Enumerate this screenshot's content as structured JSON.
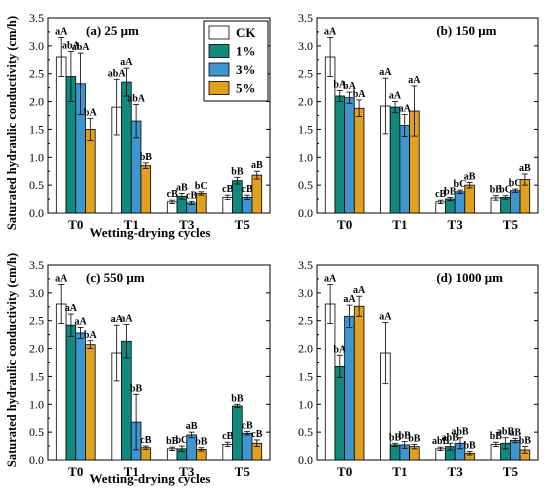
{
  "figure": {
    "y_axis_label": "Saturated hydraulic conductivity (cm/h)",
    "x_axis_label": "Wetting-drying cycles"
  },
  "colors": {
    "CK": "#ffffff",
    "1%": "#11897f",
    "3%": "#3e95cf",
    "5%": "#e1a01e"
  },
  "chart_data": [
    {
      "type": "bar",
      "title": "(a) 25 μm",
      "categories": [
        "T0",
        "T1",
        "T3",
        "T5"
      ],
      "ylim": [
        0,
        3.5
      ],
      "yticks": [
        "0.0",
        "0.5",
        "1.0",
        "1.5",
        "2.0",
        "2.5",
        "3.0",
        "3.5"
      ],
      "legend": {
        "placement": "top-right",
        "entries": [
          "CK",
          "1%",
          "3%",
          "5%"
        ]
      },
      "series": [
        {
          "name": "CK",
          "values": [
            2.8,
            1.9,
            0.2,
            0.28
          ],
          "errors": [
            0.35,
            0.5,
            0.03,
            0.04
          ],
          "labels": [
            "aA",
            "abA",
            "cB",
            "cB"
          ]
        },
        {
          "name": "1%",
          "values": [
            2.45,
            2.35,
            0.3,
            0.58
          ],
          "errors": [
            0.45,
            0.25,
            0.05,
            0.06
          ],
          "labels": [
            "abA",
            "aA",
            "aB",
            "bB"
          ]
        },
        {
          "name": "3%",
          "values": [
            2.32,
            1.65,
            0.18,
            0.28
          ],
          "errors": [
            0.55,
            0.3,
            0.03,
            0.04
          ],
          "labels": [
            "abA",
            "abA",
            "cB",
            "cB"
          ]
        },
        {
          "name": "5%",
          "values": [
            1.5,
            0.85,
            0.35,
            0.68
          ],
          "errors": [
            0.2,
            0.05,
            0.03,
            0.07
          ],
          "labels": [
            "bA",
            "bB",
            "bC",
            "aB"
          ]
        }
      ]
    },
    {
      "type": "bar",
      "title": "(b) 150 μm",
      "categories": [
        "T0",
        "T1",
        "T3",
        "T5"
      ],
      "ylim": [
        0,
        3.5
      ],
      "yticks": [
        "0.0",
        "0.5",
        "1.0",
        "1.5",
        "2.0",
        "2.5",
        "3.0",
        "3.5"
      ],
      "series": [
        {
          "name": "CK",
          "values": [
            2.8,
            1.92,
            0.2,
            0.27
          ],
          "errors": [
            0.35,
            0.5,
            0.03,
            0.04
          ],
          "labels": [
            "aA",
            "aA",
            "cB",
            "bB"
          ]
        },
        {
          "name": "1%",
          "values": [
            2.1,
            1.9,
            0.25,
            0.28
          ],
          "errors": [
            0.1,
            0.1,
            0.03,
            0.03
          ],
          "labels": [
            "bA",
            "aA",
            "bB",
            "bC"
          ]
        },
        {
          "name": "3%",
          "values": [
            2.07,
            1.57,
            0.38,
            0.4
          ],
          "errors": [
            0.1,
            0.2,
            0.03,
            0.03
          ],
          "labels": [
            "bA",
            "aA",
            "bC",
            "bC"
          ]
        },
        {
          "name": "5%",
          "values": [
            1.88,
            1.83,
            0.5,
            0.6
          ],
          "errors": [
            0.15,
            0.45,
            0.05,
            0.1
          ],
          "labels": [
            "bA",
            "aA",
            "aB",
            "aB"
          ]
        }
      ]
    },
    {
      "type": "bar",
      "title": "(c) 550 μm",
      "categories": [
        "T0",
        "T1",
        "T3",
        "T5"
      ],
      "ylim": [
        0,
        3.5
      ],
      "yticks": [
        "0.0",
        "0.5",
        "1.0",
        "1.5",
        "2.0",
        "2.5",
        "3.0",
        "3.5"
      ],
      "series": [
        {
          "name": "CK",
          "values": [
            2.8,
            1.92,
            0.2,
            0.28
          ],
          "errors": [
            0.35,
            0.5,
            0.03,
            0.04
          ],
          "labels": [
            "aA",
            "aA",
            "bB",
            "cB"
          ]
        },
        {
          "name": "1%",
          "values": [
            2.42,
            2.13,
            0.2,
            0.97
          ],
          "errors": [
            0.2,
            0.3,
            0.05,
            0.03
          ],
          "labels": [
            "aA",
            "aA",
            "bC",
            "bB"
          ]
        },
        {
          "name": "3%",
          "values": [
            2.28,
            0.68,
            0.45,
            0.48
          ],
          "errors": [
            0.1,
            0.5,
            0.05,
            0.03
          ],
          "labels": [
            "aA",
            "bB",
            "aB",
            "cB"
          ]
        },
        {
          "name": "5%",
          "values": [
            2.07,
            0.22,
            0.19,
            0.3
          ],
          "errors": [
            0.07,
            0.03,
            0.03,
            0.06
          ],
          "labels": [
            "bA",
            "cB",
            "bB",
            "cB"
          ]
        }
      ]
    },
    {
      "type": "bar",
      "title": "(d) 1000 μm",
      "categories": [
        "T0",
        "T1",
        "T3",
        "T5"
      ],
      "ylim": [
        0,
        3.5
      ],
      "yticks": [
        "0.0",
        "0.5",
        "1.0",
        "1.5",
        "2.0",
        "2.5",
        "3.0",
        "3.5"
      ],
      "series": [
        {
          "name": "CK",
          "values": [
            2.8,
            1.92,
            0.2,
            0.28
          ],
          "errors": [
            0.35,
            0.55,
            0.03,
            0.04
          ],
          "labels": [
            "aA",
            "aA",
            "abB",
            "bB"
          ]
        },
        {
          "name": "1%",
          "values": [
            1.68,
            0.27,
            0.24,
            0.3
          ],
          "errors": [
            0.2,
            0.03,
            0.06,
            0.1
          ],
          "labels": [
            "bA",
            "bB",
            "abB",
            "abB"
          ]
        },
        {
          "name": "3%",
          "values": [
            2.58,
            0.27,
            0.3,
            0.35
          ],
          "errors": [
            0.2,
            0.06,
            0.1,
            0.04
          ],
          "labels": [
            "aA",
            "bB",
            "abB",
            "aB"
          ]
        },
        {
          "name": "5%",
          "values": [
            2.76,
            0.24,
            0.12,
            0.18
          ],
          "errors": [
            0.18,
            0.04,
            0.03,
            0.06
          ],
          "labels": [
            "aA",
            "bB",
            "bB",
            "bB"
          ]
        }
      ]
    }
  ]
}
